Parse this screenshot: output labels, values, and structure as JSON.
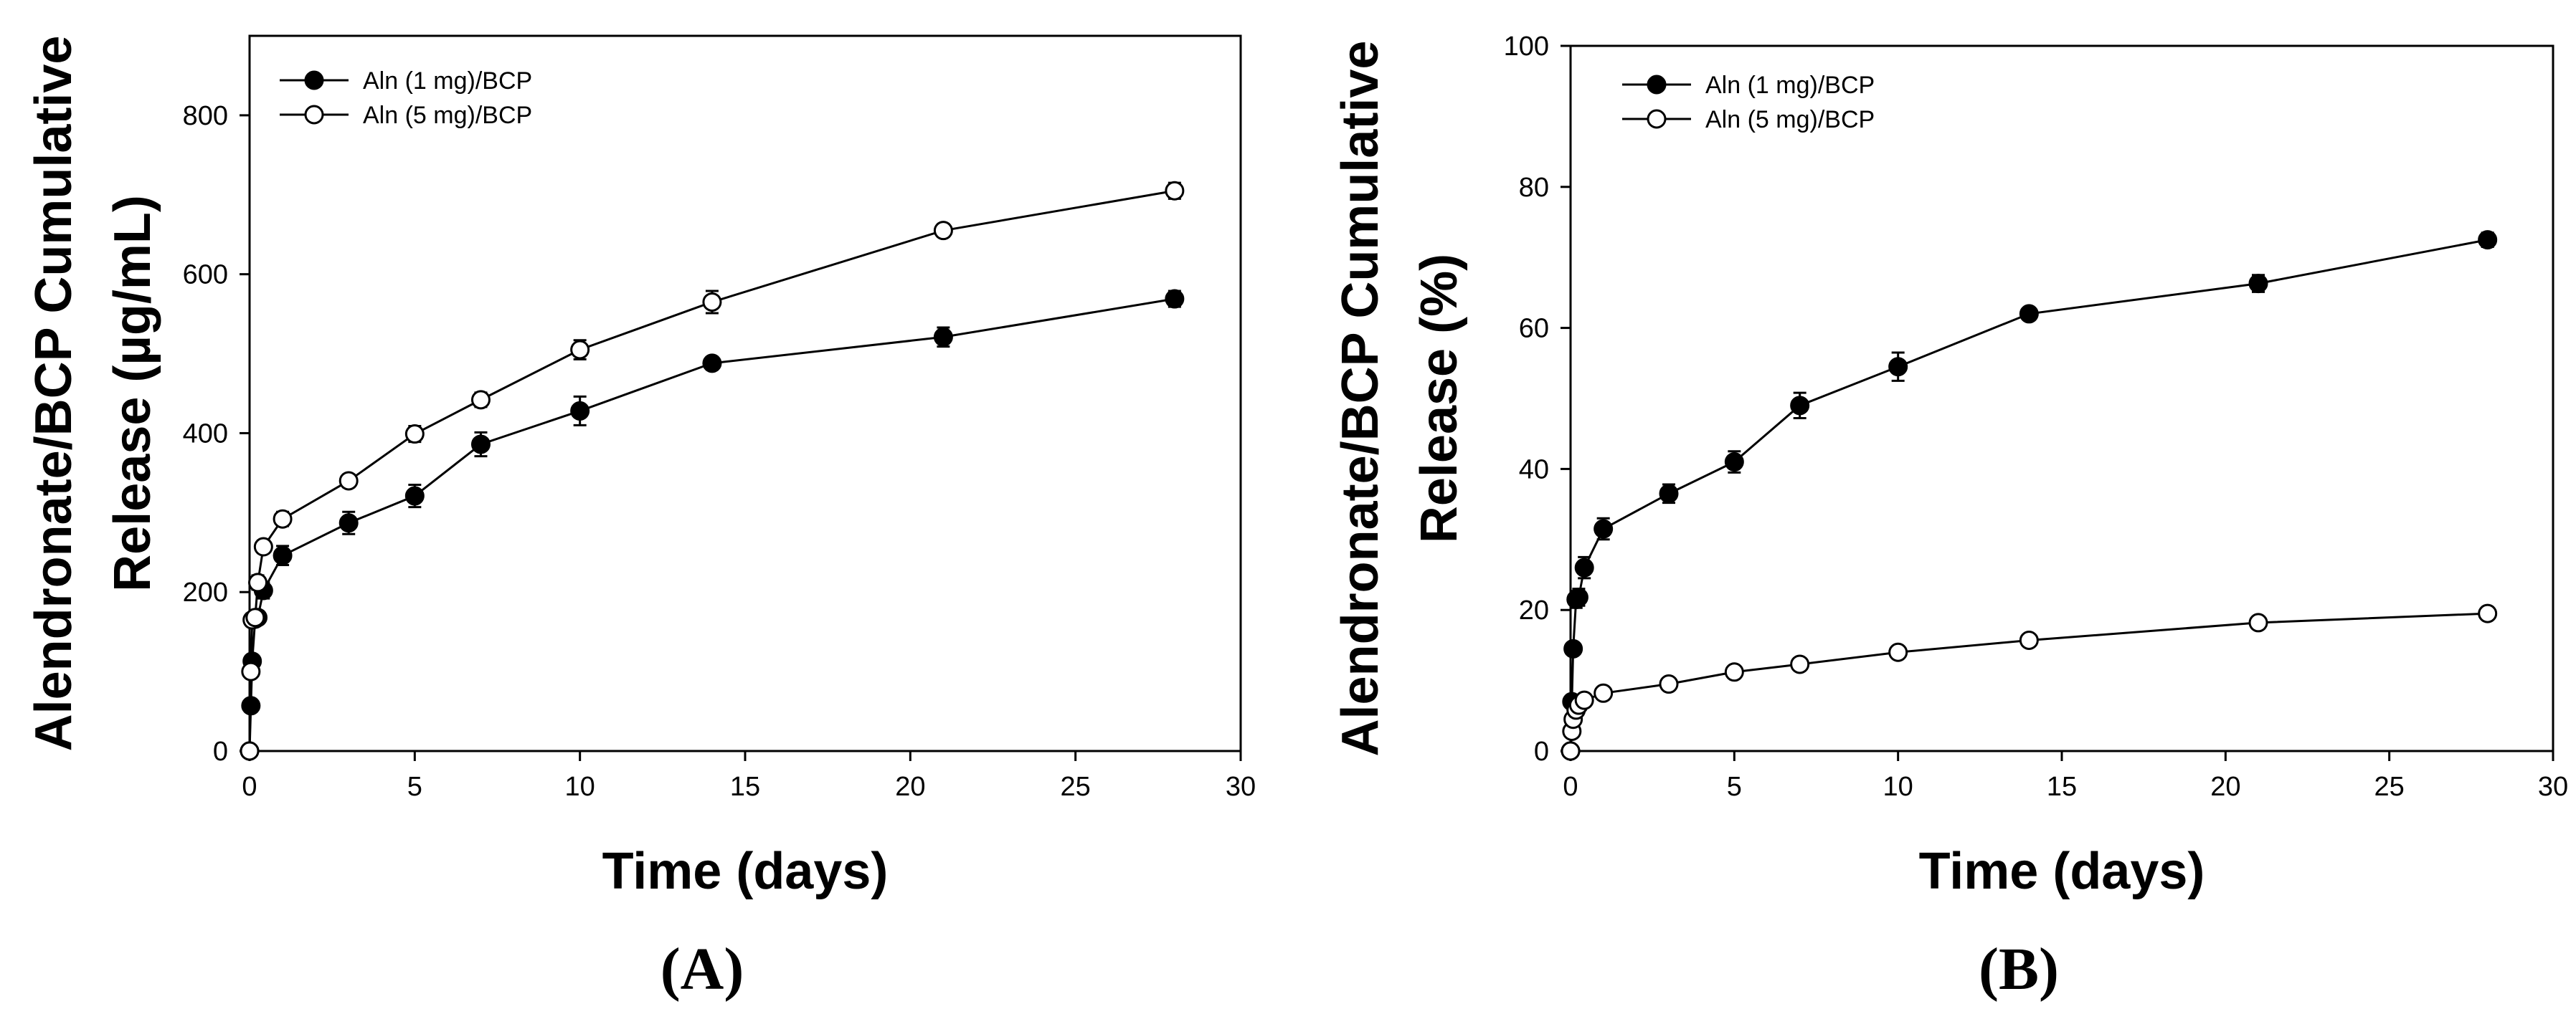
{
  "chart_data": [
    {
      "type": "line",
      "panel_label": "(A)",
      "xlabel": "Time (days)",
      "ylabel_line1": "Alendronate/BCP Cumulative",
      "ylabel_line2": "Release (µg/mL)",
      "xlim": [
        0,
        30
      ],
      "ylim": [
        0,
        900
      ],
      "xticks": [
        0,
        5,
        10,
        15,
        20,
        25,
        30
      ],
      "yticks": [
        0,
        200,
        400,
        600,
        800
      ],
      "legend_position": "top-left",
      "x": [
        0,
        0.04,
        0.08,
        0.17,
        0.25,
        0.42,
        1,
        3,
        5,
        7,
        10,
        14,
        21,
        28
      ],
      "series": [
        {
          "name": "Aln (1 mg)/BCP",
          "marker": "filled",
          "values": [
            0,
            57,
            113,
            166,
            168,
            202,
            246,
            287,
            321,
            386,
            428,
            488,
            521,
            569
          ],
          "errors": [
            0,
            5,
            7,
            8,
            8,
            10,
            12,
            14,
            14,
            15,
            18,
            8,
            12,
            10
          ]
        },
        {
          "name": "Aln (5 mg)/BCP",
          "marker": "open",
          "values": [
            0,
            100,
            165,
            168,
            212,
            257,
            292,
            340,
            399,
            442,
            505,
            565,
            655,
            705
          ],
          "errors": [
            0,
            6,
            8,
            8,
            9,
            8,
            9,
            8,
            10,
            9,
            12,
            14,
            8,
            10
          ]
        }
      ]
    },
    {
      "type": "line",
      "panel_label": "(B)",
      "xlabel": "Time (days)",
      "ylabel_line1": "Alendronate/BCP Cumulative",
      "ylabel_line2": "Release (%)",
      "xlim": [
        0,
        30
      ],
      "ylim": [
        0,
        100
      ],
      "xticks": [
        0,
        5,
        10,
        15,
        20,
        25,
        30
      ],
      "yticks": [
        0,
        20,
        40,
        60,
        80,
        100
      ],
      "legend_position": "top-left",
      "x": [
        0,
        0.04,
        0.08,
        0.17,
        0.25,
        0.42,
        1,
        3,
        5,
        7,
        10,
        14,
        21,
        28
      ],
      "series": [
        {
          "name": "Aln (1 mg)/BCP",
          "marker": "filled",
          "values": [
            0,
            7,
            14.5,
            21.5,
            21.8,
            26,
            31.5,
            36.5,
            41,
            49,
            54.5,
            62,
            66.3,
            72.5
          ],
          "errors": [
            0,
            0.6,
            0.8,
            1.2,
            1.2,
            1.5,
            1.5,
            1.3,
            1.5,
            1.8,
            2,
            0.8,
            1.2,
            1
          ]
        },
        {
          "name": "Aln (5 mg)/BCP",
          "marker": "open",
          "values": [
            0,
            2.8,
            4.5,
            5.8,
            6.5,
            7.2,
            8.2,
            9.5,
            11.2,
            12.3,
            14,
            15.7,
            18.2,
            19.5
          ],
          "errors": [
            0,
            0.2,
            0.2,
            0.3,
            0.3,
            0.3,
            0.3,
            0.3,
            0.3,
            0.3,
            0.3,
            0.3,
            0.3,
            0.3
          ]
        }
      ]
    }
  ]
}
